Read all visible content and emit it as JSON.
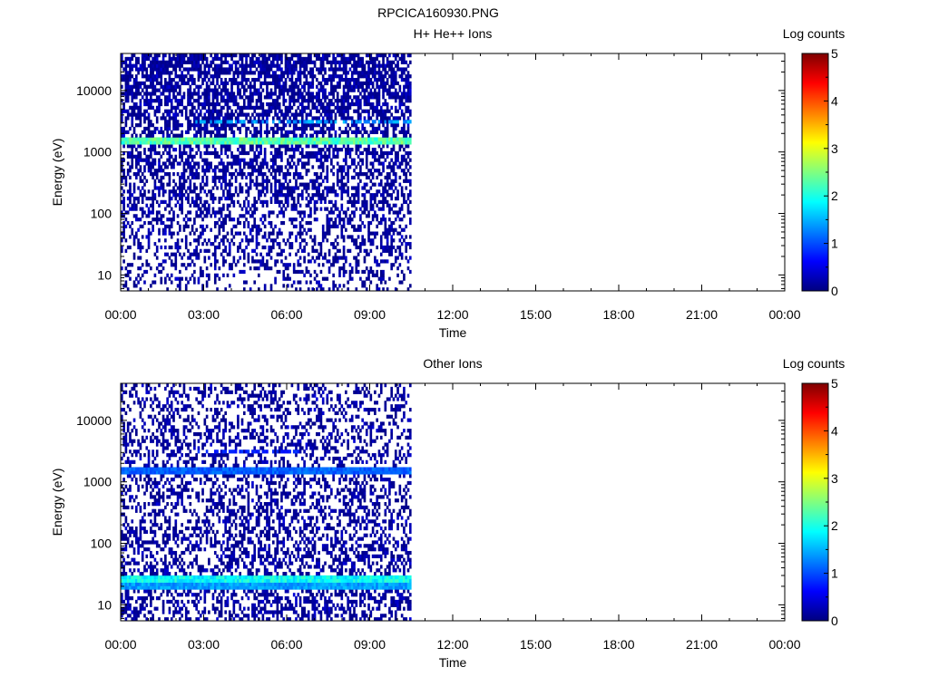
{
  "figure_title": "RPCICA160930.PNG",
  "chart_data": [
    {
      "type": "heatmap",
      "title": "H+ He++ Ions",
      "xlabel": "Time",
      "ylabel": "Energy (eV)",
      "xticks": [
        "00:00",
        "03:00",
        "06:00",
        "09:00",
        "12:00",
        "15:00",
        "18:00",
        "21:00",
        "00:00"
      ],
      "xlim_hours": [
        0,
        24
      ],
      "data_end_hours": 10.5,
      "yscale": "log",
      "ylim": [
        5.5,
        40000
      ],
      "yticks": [
        10,
        100,
        1000,
        10000
      ],
      "yticklabels": [
        "10",
        "100",
        "1000",
        "10000"
      ],
      "colorbar": {
        "label": "Log counts",
        "min": 0,
        "max": 5,
        "ticks": [
          "0",
          "1",
          "2",
          "3",
          "4",
          "5"
        ]
      },
      "bands": [
        {
          "energy_eV": 1600,
          "log_counts": 2.3,
          "from_hours": 0,
          "to_hours": 10.5
        },
        {
          "energy_eV": 3100,
          "log_counts": 1.4,
          "from_hours": 2.7,
          "to_hours": 10.5,
          "intermittent": true
        }
      ],
      "background": {
        "low_energy_density": 0.25,
        "high_energy_density": 0.75,
        "typical_log_counts": 0.2
      }
    },
    {
      "type": "heatmap",
      "title": "Other Ions",
      "xlabel": "Time",
      "ylabel": "Energy (eV)",
      "xticks": [
        "00:00",
        "03:00",
        "06:00",
        "09:00",
        "12:00",
        "15:00",
        "18:00",
        "21:00",
        "00:00"
      ],
      "xlim_hours": [
        0,
        24
      ],
      "data_end_hours": 10.5,
      "yscale": "log",
      "ylim": [
        5.5,
        40000
      ],
      "yticks": [
        10,
        100,
        1000,
        10000
      ],
      "yticklabels": [
        "10",
        "100",
        "1000",
        "10000"
      ],
      "colorbar": {
        "label": "Log counts",
        "min": 0,
        "max": 5,
        "ticks": [
          "0",
          "1",
          "2",
          "3",
          "4",
          "5"
        ]
      },
      "bands": [
        {
          "energy_eV": 1600,
          "log_counts": 1.1,
          "from_hours": 0,
          "to_hours": 10.5
        },
        {
          "energy_eV": 3100,
          "log_counts": 0.8,
          "from_hours": 2.7,
          "to_hours": 6.5,
          "intermittent": true
        },
        {
          "energy_eV": 27,
          "log_counts": 1.9,
          "from_hours": 0,
          "to_hours": 10.5
        },
        {
          "energy_eV": 20,
          "log_counts": 1.4,
          "from_hours": 0,
          "to_hours": 10.5
        }
      ],
      "background": {
        "low_energy_density": 0.45,
        "high_energy_density": 0.3,
        "typical_log_counts": 0.2
      }
    }
  ]
}
